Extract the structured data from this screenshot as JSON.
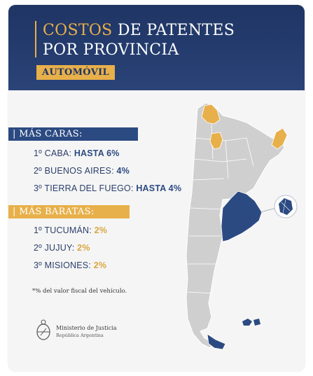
{
  "header": {
    "title_accent": "COSTOS",
    "title_rest_1": " DE PATENTES",
    "title_line2": "POR PROVINCIA",
    "badge": "AUTOMÓVIL"
  },
  "mas_caras": {
    "label": "| MÁS CARAS:",
    "items": [
      {
        "rank": "1º",
        "name": "CABA:",
        "value": "HASTA 6%"
      },
      {
        "rank": "2º",
        "name": "BUENOS AIRES:",
        "value": "4%"
      },
      {
        "rank": "3º",
        "name": "TIERRA DEL FUEGO:",
        "value": "HASTA 4%"
      }
    ]
  },
  "mas_baratas": {
    "label": "| MÁS BARATAS:",
    "items": [
      {
        "rank": "1º",
        "name": "TUCUMÁN:",
        "value": "2%"
      },
      {
        "rank": "2º",
        "name": "JUJUY:",
        "value": "2%"
      },
      {
        "rank": "3º",
        "name": "MISIONES:",
        "value": "2%"
      }
    ]
  },
  "footnote": "*% del valor fiscal del vehículo.",
  "ministry": {
    "line1": "Ministerio de Justicia",
    "line2": "República Argentina"
  },
  "colors": {
    "navy": "#1f3564",
    "blue": "#2c4a82",
    "gold": "#e8b04a",
    "gray_map": "#cfcfcf"
  }
}
